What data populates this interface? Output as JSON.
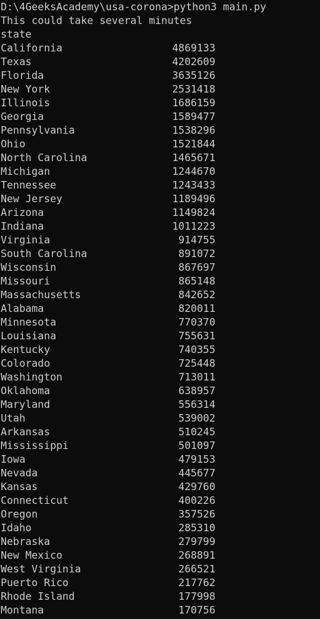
{
  "terminal": {
    "command_line": "D:\\4GeeksAcademy\\usa-corona>python3 main.py",
    "message": "This could take several minutes",
    "header": "state",
    "rows": [
      {
        "state": "California",
        "count": "4869133"
      },
      {
        "state": "Texas",
        "count": "4202609"
      },
      {
        "state": "Florida",
        "count": "3635126"
      },
      {
        "state": "New York",
        "count": "2531418"
      },
      {
        "state": "Illinois",
        "count": "1686159"
      },
      {
        "state": "Georgia",
        "count": "1589477"
      },
      {
        "state": "Pennsylvania",
        "count": "1538296"
      },
      {
        "state": "Ohio",
        "count": "1521844"
      },
      {
        "state": "North Carolina",
        "count": "1465671"
      },
      {
        "state": "Michigan",
        "count": "1244670"
      },
      {
        "state": "Tennessee",
        "count": "1243433"
      },
      {
        "state": "New Jersey",
        "count": "1189496"
      },
      {
        "state": "Arizona",
        "count": "1149824"
      },
      {
        "state": "Indiana",
        "count": "1011223"
      },
      {
        "state": "Virginia",
        "count": "914755"
      },
      {
        "state": "South Carolina",
        "count": "891072"
      },
      {
        "state": "Wisconsin",
        "count": "867697"
      },
      {
        "state": "Missouri",
        "count": "865148"
      },
      {
        "state": "Massachusetts",
        "count": "842652"
      },
      {
        "state": "Alabama",
        "count": "820011"
      },
      {
        "state": "Minnesota",
        "count": "770370"
      },
      {
        "state": "Louisiana",
        "count": "755631"
      },
      {
        "state": "Kentucky",
        "count": "740355"
      },
      {
        "state": "Colorado",
        "count": "725448"
      },
      {
        "state": "Washington",
        "count": "713011"
      },
      {
        "state": "Oklahoma",
        "count": "638957"
      },
      {
        "state": "Maryland",
        "count": "556314"
      },
      {
        "state": "Utah",
        "count": "539002"
      },
      {
        "state": "Arkansas",
        "count": "510245"
      },
      {
        "state": "Mississippi",
        "count": "501097"
      },
      {
        "state": "Iowa",
        "count": "479153"
      },
      {
        "state": "Nevada",
        "count": "445677"
      },
      {
        "state": "Kansas",
        "count": "429760"
      },
      {
        "state": "Connecticut",
        "count": "400226"
      },
      {
        "state": "Oregon",
        "count": "357526"
      },
      {
        "state": "Idaho",
        "count": "285310"
      },
      {
        "state": "Nebraska",
        "count": "279799"
      },
      {
        "state": "New Mexico",
        "count": "268891"
      },
      {
        "state": "West Virginia",
        "count": "266521"
      },
      {
        "state": "Puerto Rico",
        "count": "217762"
      },
      {
        "state": "Rhode Island",
        "count": "177998"
      },
      {
        "state": "Montana",
        "count": "170756"
      }
    ]
  },
  "colors": {
    "background": "#0c0c0c",
    "text": "#cccccc"
  }
}
